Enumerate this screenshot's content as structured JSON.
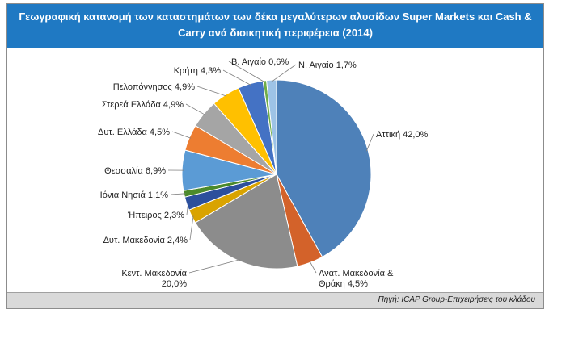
{
  "title": {
    "line1": "Γεωγραφική κατανομή των καταστημάτων των δέκα μεγαλύτερων αλυσίδων Super Markets και Cash &",
    "line2": "Carry ανά διοικητική περιφέρεια (2014)"
  },
  "source": "Πηγή: ICAP Group-Επιχειρήσεις του κλάδου",
  "colors": {
    "header_bg": "#1f79c3",
    "footer_bg": "#d9d9d9"
  },
  "chart_data": {
    "type": "pie",
    "title": "Γεωγραφική κατανομή των καταστημάτων των δέκα μεγαλύτερων αλυσίδων Super Markets και Cash & Carry ανά διοικητική περιφέρεια (2014)",
    "slices": [
      {
        "name": "Αττική",
        "value": 42.0,
        "label": "Αττική 42,0%",
        "color": "#4e81b9"
      },
      {
        "name": "Ανατ. Μακεδονία & Θράκη",
        "value": 4.5,
        "label": "Ανατ. Μακεδονία & Θράκη 4,5%",
        "color": "#d3622a"
      },
      {
        "name": "Κεντ. Μακεδονία",
        "value": 20.0,
        "label": "Κεντ. Μακεδονία 20,0%",
        "color": "#8c8c8c"
      },
      {
        "name": "Δυτ. Μακεδονία",
        "value": 2.4,
        "label": "Δυτ. Μακεδονία 2,4%",
        "color": "#d9a300"
      },
      {
        "name": "Ήπειρος",
        "value": 2.3,
        "label": "Ήπειρος 2,3%",
        "color": "#2c4f9c"
      },
      {
        "name": "Ιόνια Νησιά",
        "value": 1.1,
        "label": "Ιόνια Νησιά 1,1%",
        "color": "#4c8a2c"
      },
      {
        "name": "Θεσσαλία",
        "value": 6.9,
        "label": "Θεσσαλία 6,9%",
        "color": "#5b9bd5"
      },
      {
        "name": "Δυτ. Ελλάδα",
        "value": 4.5,
        "label": "Δυτ. Ελλάδα 4,5%",
        "color": "#ed7d31"
      },
      {
        "name": "Στερεά Ελλάδα",
        "value": 4.9,
        "label": "Στερεά Ελλάδα 4,9%",
        "color": "#a5a5a5"
      },
      {
        "name": "Πελοπόννησος",
        "value": 4.9,
        "label": "Πελοπόννησος 4,9%",
        "color": "#ffc000"
      },
      {
        "name": "Κρήτη",
        "value": 4.3,
        "label": "Κρήτη 4,3%",
        "color": "#4472c4"
      },
      {
        "name": "Β. Αιγαίο",
        "value": 0.6,
        "label": "Β. Αιγαίο 0,6%",
        "color": "#70ad47"
      },
      {
        "name": "Ν. Αιγαίο",
        "value": 1.7,
        "label": "Ν. Αιγαίο 1,7%",
        "color": "#9dc3e6"
      }
    ]
  }
}
